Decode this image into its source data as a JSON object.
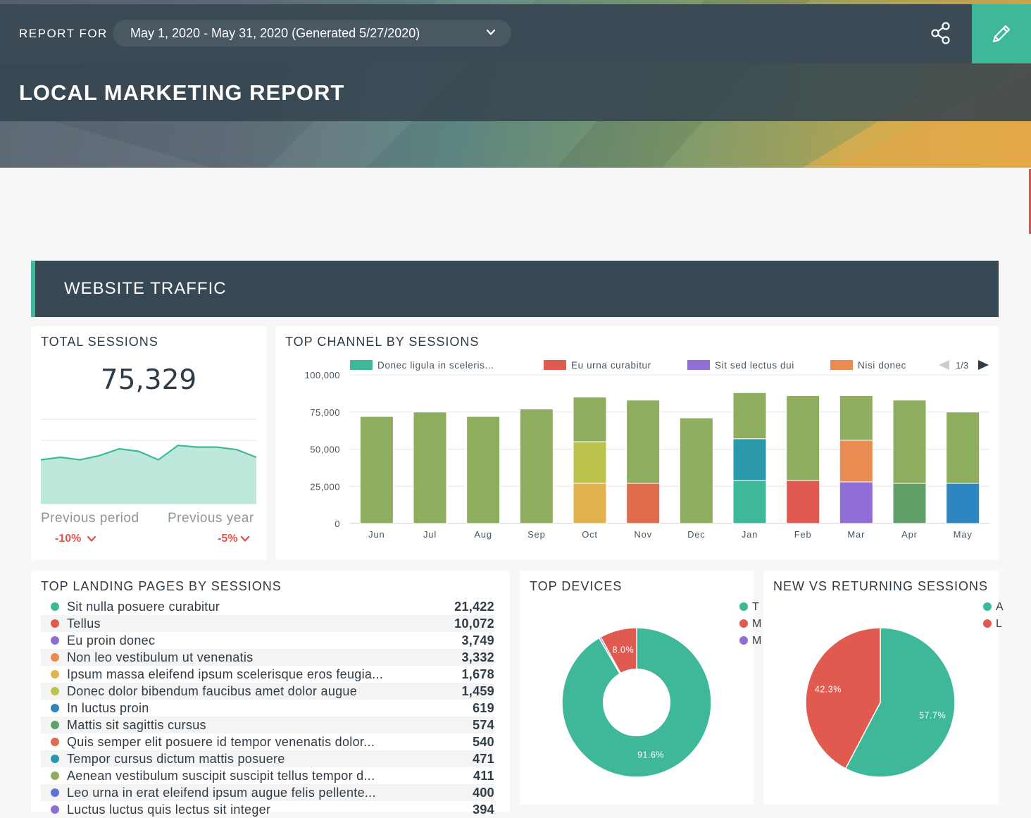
{
  "header": {
    "report_for_label": "REPORT FOR",
    "date_range": "May 1, 2020 - May 31, 2020 (Generated 5/27/2020)",
    "title": "LOCAL MARKETING REPORT"
  },
  "section": {
    "title": "WEBSITE TRAFFIC"
  },
  "total_sessions": {
    "title": "TOTAL SESSIONS",
    "value": "75,329",
    "spark_values": [
      0.52,
      0.55,
      0.52,
      0.57,
      0.65,
      0.62,
      0.52,
      0.69,
      0.67,
      0.67,
      0.64,
      0.55
    ],
    "spark_range": [
      0,
      1
    ],
    "previous_period_label": "Previous period",
    "previous_period_value": "-10%",
    "previous_year_label": "Previous year",
    "previous_year_value": "-5%"
  },
  "top_channel": {
    "title": "TOP CHANNEL BY SESSIONS",
    "legend_page": "1/3",
    "chart_data": {
      "type": "bar",
      "stacked": true,
      "categories": [
        "Jun",
        "Jul",
        "Aug",
        "Sep",
        "Oct",
        "Nov",
        "Dec",
        "Jan",
        "Feb",
        "Mar",
        "Apr",
        "May"
      ],
      "ylim": [
        0,
        100000
      ],
      "yticks": [
        0,
        25000,
        50000,
        75000,
        100000
      ],
      "ytick_labels": [
        "0",
        "25,000",
        "50,000",
        "75,000",
        "100,000"
      ],
      "grid": true,
      "legend_position": "top",
      "legend": [
        {
          "name": "Donec ligula in sceleris...",
          "color": "#3fb89a"
        },
        {
          "name": "Eu urna curabitur",
          "color": "#e05a50"
        },
        {
          "name": "Sit sed lectus dui",
          "color": "#8f6ed8"
        },
        {
          "name": "Nisi donec",
          "color": "#e88c52"
        }
      ],
      "stacks": [
        [
          {
            "value": 72000,
            "color": "#8fad5e"
          }
        ],
        [
          {
            "value": 75000,
            "color": "#8fad5e"
          }
        ],
        [
          {
            "value": 72000,
            "color": "#8fad5e"
          }
        ],
        [
          {
            "value": 77000,
            "color": "#8fad5e"
          }
        ],
        [
          {
            "value": 27000,
            "color": "#e2b24e"
          },
          {
            "value": 28000,
            "color": "#bcc34d"
          },
          {
            "value": 30000,
            "color": "#8fad5e"
          }
        ],
        [
          {
            "value": 27000,
            "color": "#e06c4e"
          },
          {
            "value": 56000,
            "color": "#8fad5e"
          }
        ],
        [
          {
            "value": 71000,
            "color": "#8fad5e"
          }
        ],
        [
          {
            "value": 29000,
            "color": "#3fb89a"
          },
          {
            "value": 28000,
            "color": "#2a97ab"
          },
          {
            "value": 31000,
            "color": "#8fad5e"
          }
        ],
        [
          {
            "value": 29000,
            "color": "#e05a50"
          },
          {
            "value": 57000,
            "color": "#8fad5e"
          }
        ],
        [
          {
            "value": 28000,
            "color": "#8f6ed8"
          },
          {
            "value": 28000,
            "color": "#e88c52"
          },
          {
            "value": 30000,
            "color": "#8fad5e"
          }
        ],
        [
          {
            "value": 27000,
            "color": "#62a06a"
          },
          {
            "value": 56000,
            "color": "#8fad5e"
          }
        ],
        [
          {
            "value": 27000,
            "color": "#2e86c1"
          },
          {
            "value": 48000,
            "color": "#8fad5e"
          }
        ]
      ]
    }
  },
  "landing_pages": {
    "title": "TOP LANDING PAGES BY SESSIONS",
    "rows": [
      {
        "name": "Sit nulla posuere curabitur",
        "value": "21,422",
        "color": "#3fb89a"
      },
      {
        "name": "Tellus",
        "value": "10,072",
        "color": "#e05a50"
      },
      {
        "name": "Eu proin donec",
        "value": "3,749",
        "color": "#8f6ed8"
      },
      {
        "name": "Non leo vestibulum ut venenatis",
        "value": "3,332",
        "color": "#e88c52"
      },
      {
        "name": "Ipsum massa eleifend ipsum scelerisque eros feugia...",
        "value": "1,678",
        "color": "#e2b24e"
      },
      {
        "name": "Donec dolor bibendum faucibus amet dolor augue",
        "value": "1,459",
        "color": "#bcc34d"
      },
      {
        "name": "In luctus proin",
        "value": "619",
        "color": "#2e86c1"
      },
      {
        "name": "Mattis sit sagittis cursus",
        "value": "574",
        "color": "#62a06a"
      },
      {
        "name": "Quis semper elit posuere id tempor venenatis dolor...",
        "value": "540",
        "color": "#e06c4e"
      },
      {
        "name": "Tempor cursus dictum mattis posuere",
        "value": "471",
        "color": "#2a97ab"
      },
      {
        "name": "Aenean vestibulum suscipit suscipit tellus tempor d...",
        "value": "411",
        "color": "#8fad5e"
      },
      {
        "name": "Leo urna in erat eleifend ipsum augue felis pellente...",
        "value": "400",
        "color": "#5f72d6"
      },
      {
        "name": "Luctus luctus quis lectus sit integer",
        "value": "394",
        "color": "#8f6ed8"
      }
    ]
  },
  "devices": {
    "title": "TOP DEVICES",
    "chart_data": {
      "type": "pie",
      "donut": true,
      "slices": [
        {
          "value": 91.6,
          "label": "91.6%",
          "color": "#3fb89a"
        },
        {
          "value": 0.4,
          "label": "",
          "color": "#8f6ed8"
        },
        {
          "value": 8.0,
          "label": "8.0%",
          "color": "#e05a50"
        }
      ],
      "legend": [
        {
          "text": "T",
          "color": "#3fb89a"
        },
        {
          "text": "M",
          "color": "#e05a50"
        },
        {
          "text": "M",
          "color": "#8f6ed8"
        }
      ]
    }
  },
  "new_returning": {
    "title": "NEW VS RETURNING SESSIONS",
    "chart_data": {
      "type": "pie",
      "donut": false,
      "slices": [
        {
          "value": 57.7,
          "label": "57.7%",
          "color": "#3fb89a"
        },
        {
          "value": 42.3,
          "label": "42.3%",
          "color": "#e05a50"
        }
      ],
      "legend": [
        {
          "text": "A",
          "color": "#3fb89a"
        },
        {
          "text": "L",
          "color": "#e05a50"
        }
      ]
    }
  }
}
